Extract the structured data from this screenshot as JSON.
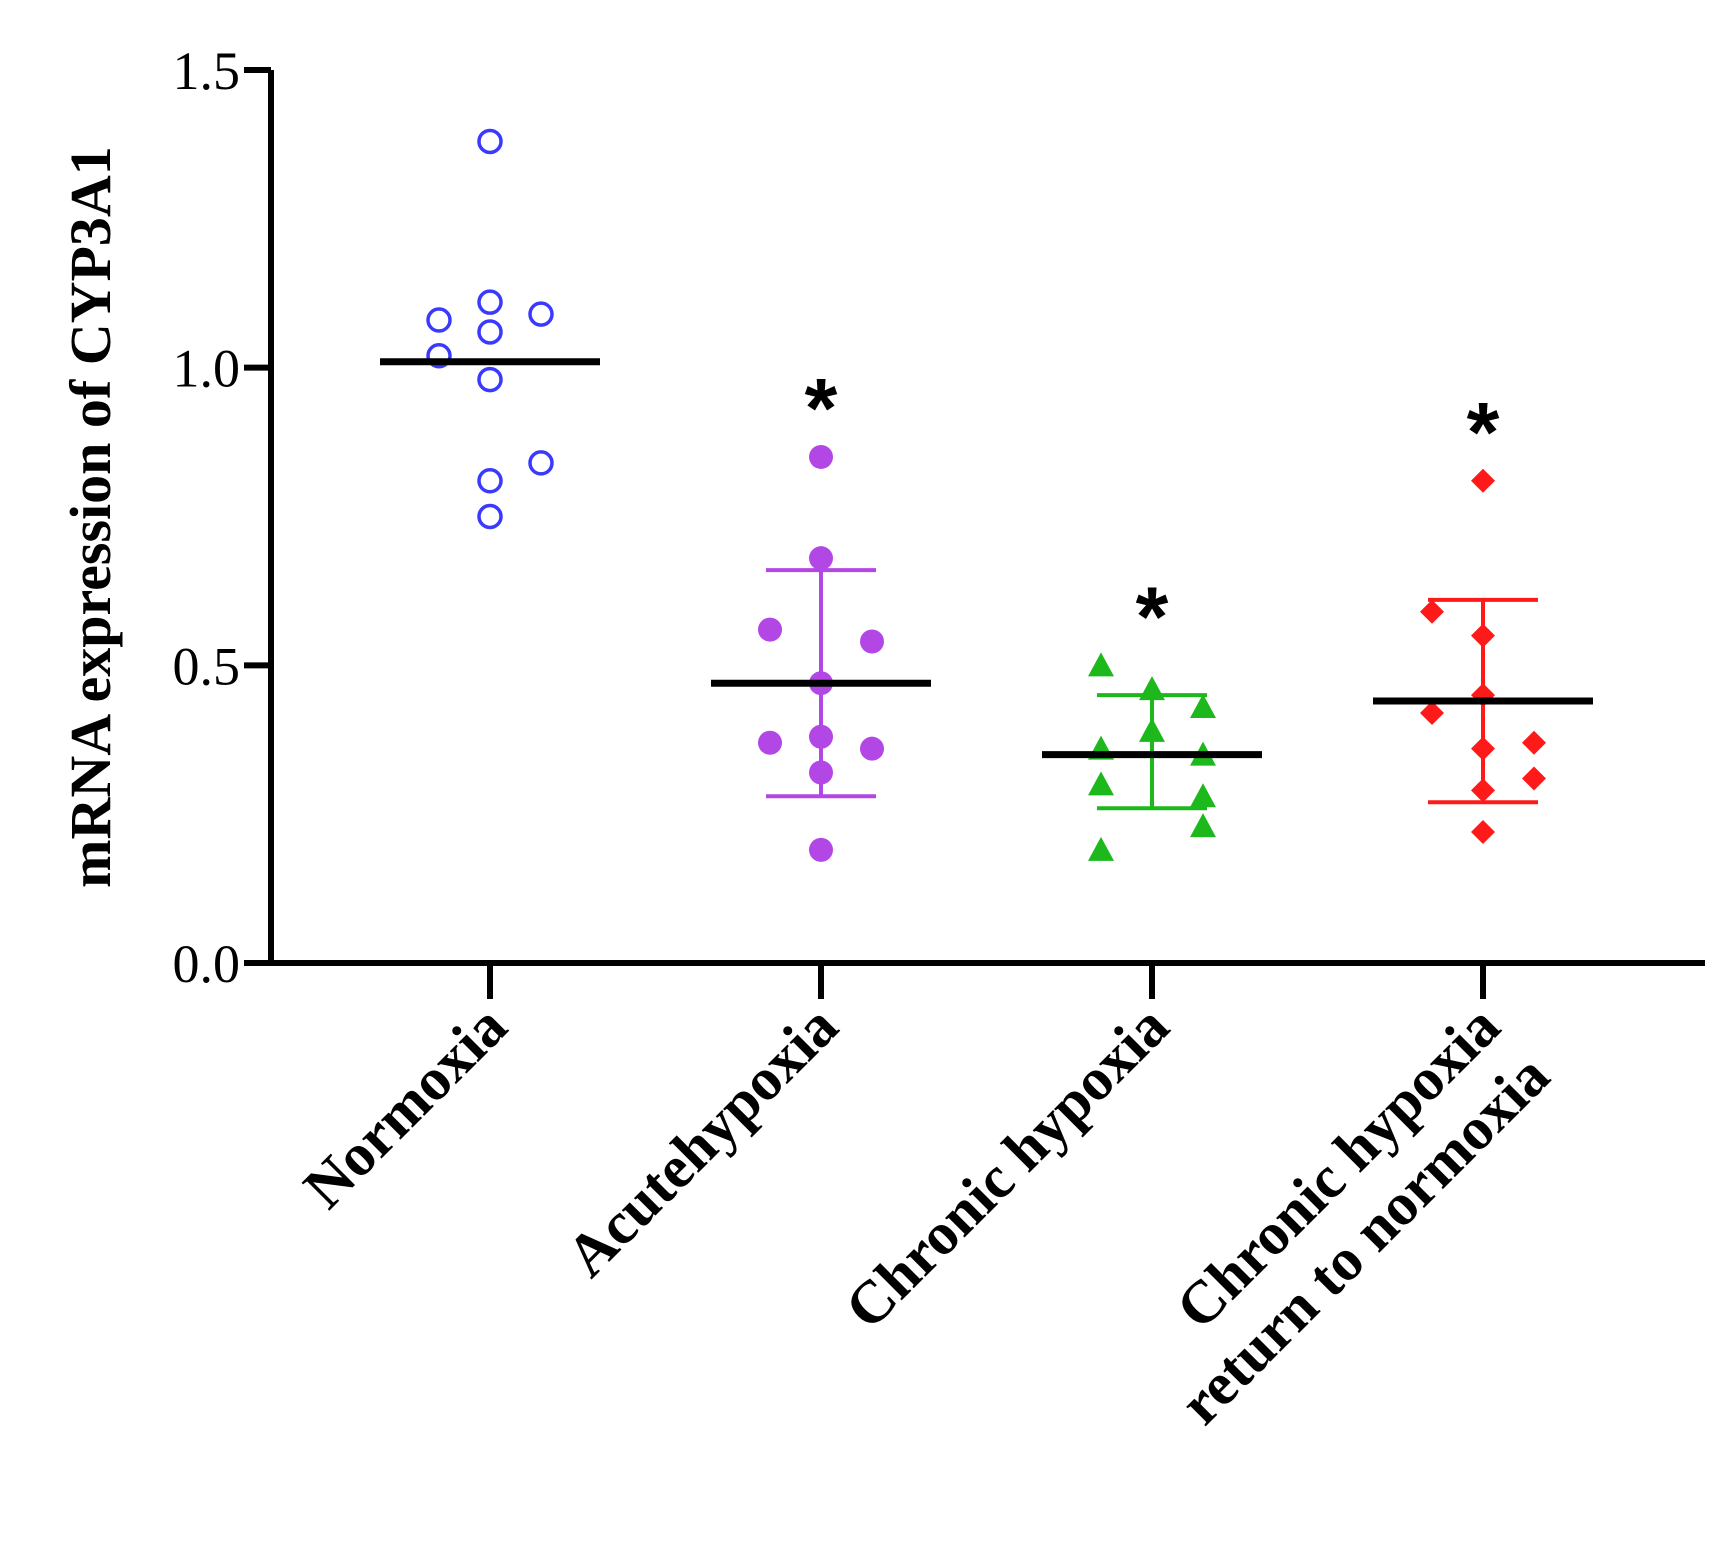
{
  "chart_data": {
    "type": "scatter",
    "title": "",
    "xlabel": "",
    "ylabel": "mRNA expression of CYP3A1",
    "ylim": [
      0,
      1.5
    ],
    "yticks": [
      "0.0",
      "0.5",
      "1.0",
      "1.5"
    ],
    "categories": [
      [
        "Normoxia"
      ],
      [
        "Acutehypoxia"
      ],
      [
        "Chronic hypoxia"
      ],
      [
        "Chronic hypoxia",
        "return to normoxia"
      ]
    ],
    "series": [
      {
        "name": "Normoxia",
        "color": "#3a3aff",
        "marker": "open-circle",
        "points": [
          [
            0,
            1.38
          ],
          [
            -0.15,
            1.08
          ],
          [
            0,
            1.11
          ],
          [
            0.15,
            1.09
          ],
          [
            -0.15,
            1.02
          ],
          [
            0,
            1.06
          ],
          [
            0,
            0.98
          ],
          [
            0,
            0.81
          ],
          [
            0.15,
            0.84
          ],
          [
            0,
            0.75
          ]
        ],
        "mean": 1.01,
        "error_bar": null,
        "significance": ""
      },
      {
        "name": "Acutehypoxia",
        "color": "#b347e6",
        "marker": "filled-circle",
        "points": [
          [
            0,
            0.85
          ],
          [
            0,
            0.68
          ],
          [
            -0.15,
            0.56
          ],
          [
            0.15,
            0.54
          ],
          [
            0,
            0.47
          ],
          [
            -0.15,
            0.37
          ],
          [
            0,
            0.38
          ],
          [
            0.15,
            0.36
          ],
          [
            0,
            0.32
          ],
          [
            0,
            0.19
          ]
        ],
        "mean": 0.47,
        "error_bar": [
          0.28,
          0.66
        ],
        "significance": "*"
      },
      {
        "name": "Chronic hypoxia",
        "color": "#1cb81c",
        "marker": "filled-triangle",
        "points": [
          [
            -0.15,
            0.5
          ],
          [
            0,
            0.46
          ],
          [
            0.15,
            0.43
          ],
          [
            0,
            0.39
          ],
          [
            -0.15,
            0.36
          ],
          [
            0.15,
            0.35
          ],
          [
            -0.15,
            0.3
          ],
          [
            0.15,
            0.28
          ],
          [
            0.15,
            0.23
          ],
          [
            -0.15,
            0.19
          ]
        ],
        "mean": 0.35,
        "error_bar": [
          0.26,
          0.45
        ],
        "significance": "*"
      },
      {
        "name": "Chronic hypoxia return to normoxia",
        "color": "#ff1a1a",
        "marker": "filled-diamond",
        "points": [
          [
            0,
            0.81
          ],
          [
            -0.15,
            0.59
          ],
          [
            0,
            0.55
          ],
          [
            0,
            0.45
          ],
          [
            -0.15,
            0.42
          ],
          [
            0.15,
            0.37
          ],
          [
            0,
            0.36
          ],
          [
            0.15,
            0.31
          ],
          [
            0,
            0.29
          ],
          [
            0,
            0.22
          ]
        ],
        "mean": 0.44,
        "error_bar": [
          0.27,
          0.61
        ],
        "significance": "*"
      }
    ]
  }
}
